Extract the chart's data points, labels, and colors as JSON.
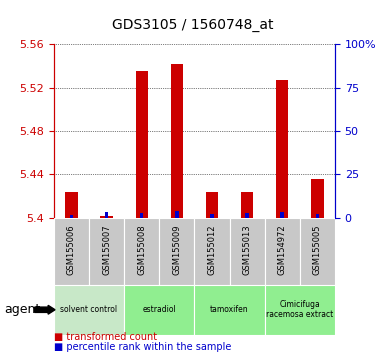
{
  "title": "GDS3105 / 1560748_at",
  "samples": [
    "GSM155006",
    "GSM155007",
    "GSM155008",
    "GSM155009",
    "GSM155012",
    "GSM155013",
    "GSM154972",
    "GSM155005"
  ],
  "red_values": [
    5.424,
    5.402,
    5.535,
    5.542,
    5.424,
    5.424,
    5.527,
    5.436
  ],
  "blue_pct": [
    1.5,
    3.5,
    3.0,
    4.0,
    2.0,
    3.0,
    3.5,
    2.0
  ],
  "y_min": 5.4,
  "y_max": 5.56,
  "y_ticks": [
    5.4,
    5.44,
    5.48,
    5.52,
    5.56
  ],
  "y2_ticks": [
    0,
    25,
    50,
    75,
    100
  ],
  "y2_labels": [
    "0",
    "25",
    "50",
    "75",
    "100%"
  ],
  "bar_width": 0.35,
  "blue_bar_width": 0.1,
  "red_color": "#cc0000",
  "blue_color": "#0000cc",
  "left_axis_color": "#cc0000",
  "right_axis_color": "#0000cc",
  "bg_label_row": "#c8c8c8",
  "group_colors": [
    "#c8e8c8",
    "#90ee90",
    "#90ee90",
    "#90ee90"
  ],
  "group_labels": [
    "solvent control",
    "estradiol",
    "tamoxifen",
    "Cimicifuga\nracemosa extract"
  ],
  "group_ranges": [
    [
      0,
      2
    ],
    [
      2,
      4
    ],
    [
      4,
      6
    ],
    [
      6,
      8
    ]
  ],
  "agent_label": "agent",
  "legend_red": "transformed count",
  "legend_blue": "percentile rank within the sample"
}
